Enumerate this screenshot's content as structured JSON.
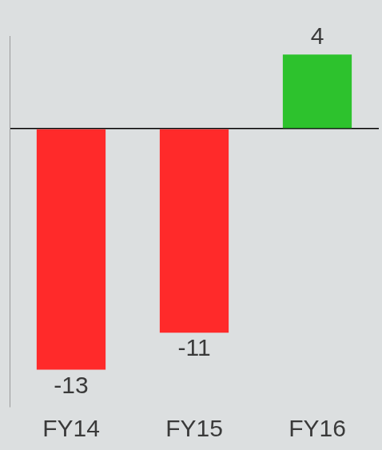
{
  "chart_data": {
    "type": "bar",
    "categories": [
      "FY14",
      "FY15",
      "FY16"
    ],
    "values": [
      -13,
      -11,
      4
    ],
    "colors": [
      "#ff2a2a",
      "#ff2a2a",
      "#2dc22d"
    ],
    "ylim": [
      -15,
      5
    ],
    "yticks": [
      0
    ],
    "grid": true,
    "data_labels": true,
    "tick_labels": "x"
  }
}
